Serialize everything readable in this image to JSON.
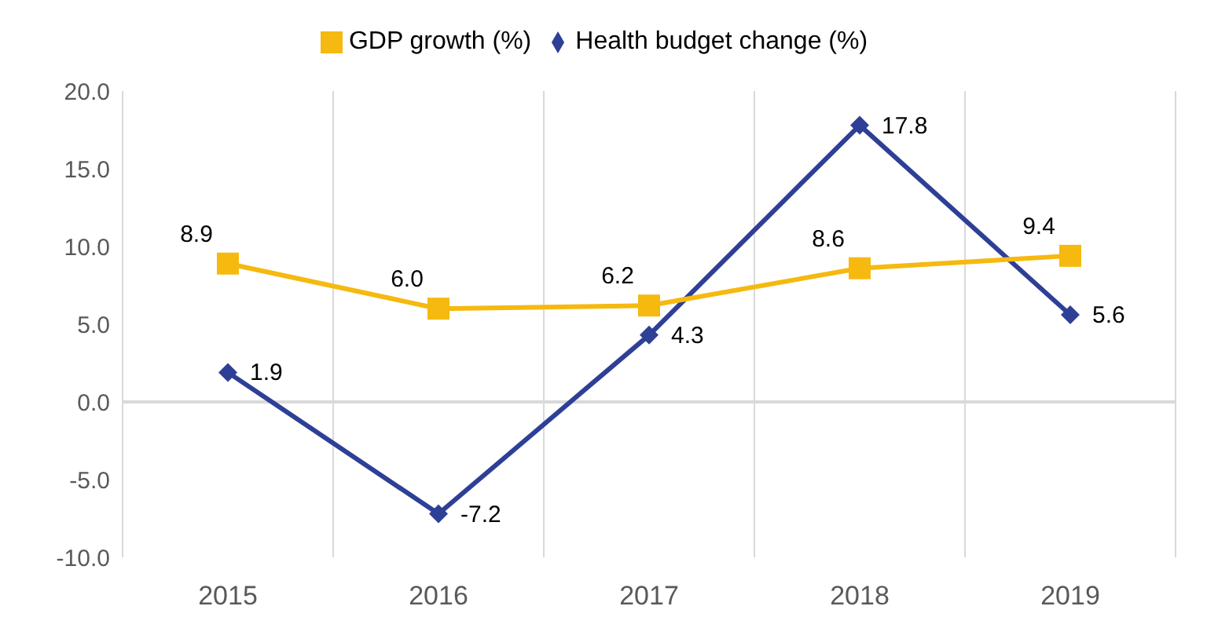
{
  "chart_data": {
    "type": "line",
    "categories": [
      "2015",
      "2016",
      "2017",
      "2018",
      "2019"
    ],
    "series": [
      {
        "name": "Health budget change (%)",
        "color": "#2e3f96",
        "marker": "diamond",
        "values": [
          1.9,
          -7.2,
          4.3,
          17.8,
          5.6
        ],
        "value_labels": [
          "1.9",
          "-7.2",
          "4.3",
          "17.8",
          "5.6"
        ]
      },
      {
        "name": "GDP growth (%)",
        "color": "#f5b90f",
        "marker": "square",
        "values": [
          8.9,
          6.0,
          6.2,
          8.6,
          9.4
        ],
        "value_labels": [
          "8.9",
          "6.0",
          "6.2",
          "8.6",
          "9.4"
        ]
      }
    ],
    "ylim": [
      -10,
      20
    ],
    "yticks": [
      {
        "value": -10,
        "label": "-10.0"
      },
      {
        "value": -5,
        "label": "-5.0"
      },
      {
        "value": 0,
        "label": "0.0"
      },
      {
        "value": 5,
        "label": "5.0"
      },
      {
        "value": 10,
        "label": "10.0"
      },
      {
        "value": 15,
        "label": "15.0"
      },
      {
        "value": 20,
        "label": "20.0"
      }
    ],
    "ref_lines": [
      {
        "axis": "y",
        "value": 0,
        "color": "#d9d9d9"
      }
    ],
    "grid": "x",
    "legend": "top",
    "line_style": "solid"
  }
}
